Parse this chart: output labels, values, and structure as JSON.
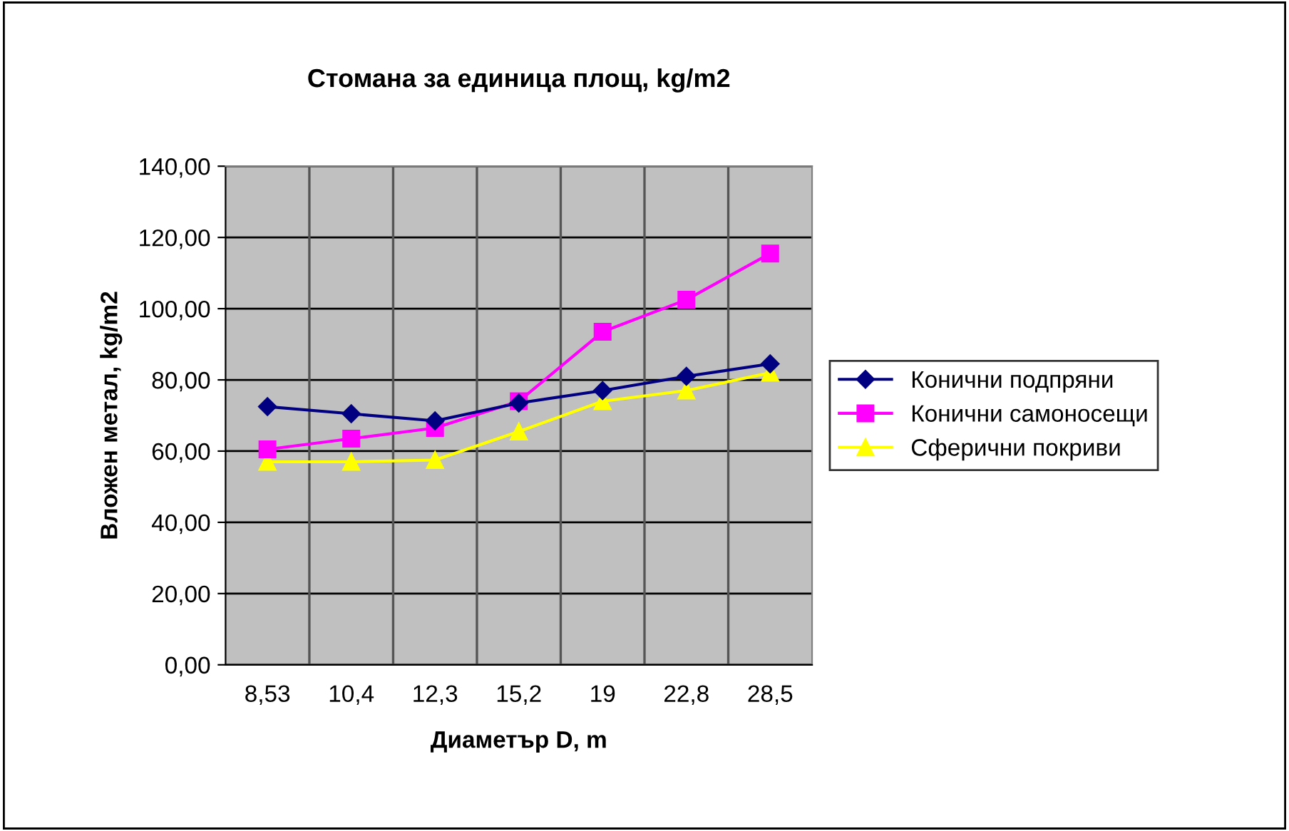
{
  "chart_data": {
    "type": "line",
    "title": "Стомана за единица площ, kg/m2",
    "xlabel": "Диаметър D, m",
    "ylabel": "Вложен метал, kg/m2",
    "categories": [
      "8,53",
      "10,4",
      "12,3",
      "15,2",
      "19",
      "22,8",
      "28,5"
    ],
    "series": [
      {
        "name": "Конични подпряни",
        "color": "#000080",
        "marker": "diamond",
        "values": [
          72.5,
          70.5,
          68.5,
          73.5,
          77,
          81,
          84.5
        ]
      },
      {
        "name": "Конични самоносещи",
        "color": "#ff00ff",
        "marker": "square",
        "values": [
          60.5,
          63.5,
          66.5,
          74,
          93.5,
          102.5,
          115.5
        ]
      },
      {
        "name": "Сферични покриви",
        "color": "#ffff00",
        "marker": "triangle",
        "values": [
          57,
          57,
          57.5,
          65.5,
          74,
          77,
          82
        ]
      }
    ],
    "ylim": [
      0,
      140
    ],
    "yticks": [
      {
        "value": 0,
        "label": "0,00"
      },
      {
        "value": 20,
        "label": "20,00"
      },
      {
        "value": 40,
        "label": "40,00"
      },
      {
        "value": 60,
        "label": "60,00"
      },
      {
        "value": 80,
        "label": "80,00"
      },
      {
        "value": 100,
        "label": "100,00"
      },
      {
        "value": 120,
        "label": "120,00"
      },
      {
        "value": 140,
        "label": "140,00"
      }
    ],
    "grid": true,
    "legend": "right",
    "line_style": "solid"
  }
}
